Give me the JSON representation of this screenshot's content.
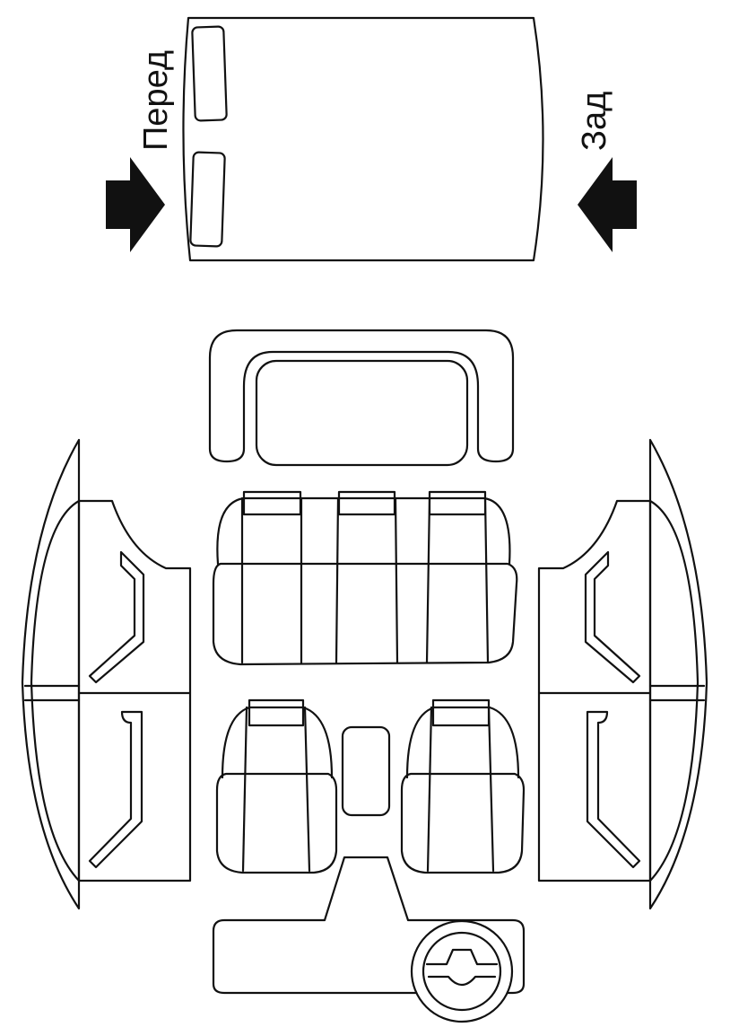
{
  "labels": {
    "front": "Перед",
    "rear": "Зад"
  },
  "colors": {
    "line": "#111111",
    "background": "#ffffff"
  },
  "icons": {
    "front_arrow": "arrow-right-icon",
    "rear_arrow": "arrow-left-icon"
  }
}
